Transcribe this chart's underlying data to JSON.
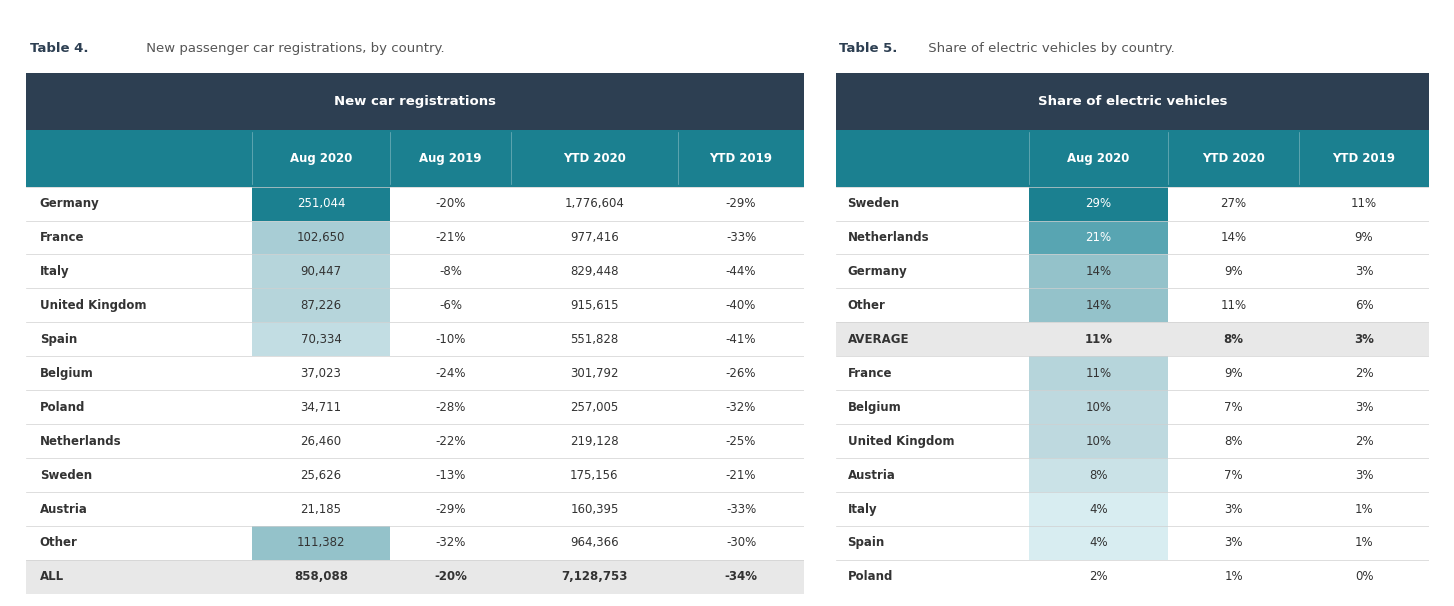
{
  "table4_title_bold": "Table 4.",
  "table4_title_rest": " New passenger car registrations, by country.",
  "table4_header_main": "New car registrations",
  "table4_cols": [
    "",
    "Aug 2020",
    "Aug 2019",
    "YTD 2020",
    "YTD 2019"
  ],
  "table4_rows": [
    [
      "Germany",
      "251,044",
      "-20%",
      "1,776,604",
      "-29%"
    ],
    [
      "France",
      "102,650",
      "-21%",
      "977,416",
      "-33%"
    ],
    [
      "Italy",
      "90,447",
      "-8%",
      "829,448",
      "-44%"
    ],
    [
      "United Kingdom",
      "87,226",
      "-6%",
      "915,615",
      "-40%"
    ],
    [
      "Spain",
      "70,334",
      "-10%",
      "551,828",
      "-41%"
    ],
    [
      "Belgium",
      "37,023",
      "-24%",
      "301,792",
      "-26%"
    ],
    [
      "Poland",
      "34,711",
      "-28%",
      "257,005",
      "-32%"
    ],
    [
      "Netherlands",
      "26,460",
      "-22%",
      "219,128",
      "-25%"
    ],
    [
      "Sweden",
      "25,626",
      "-13%",
      "175,156",
      "-21%"
    ],
    [
      "Austria",
      "21,185",
      "-29%",
      "160,395",
      "-33%"
    ],
    [
      "Other",
      "111,382",
      "-32%",
      "964,366",
      "-30%"
    ],
    [
      "ALL",
      "858,088",
      "-20%",
      "7,128,753",
      "-34%"
    ]
  ],
  "table4_aug2020_colors": [
    "#1b8090",
    "#a8cdd5",
    "#b6d5db",
    "#b6d5db",
    "#c2dde3",
    "#ffffff",
    "#ffffff",
    "#ffffff",
    "#ffffff",
    "#ffffff",
    "#94c2ca",
    "#e8e8e8"
  ],
  "table4_all_row": 11,
  "table4_avg_row": -1,
  "table5_title_bold": "Table 5.",
  "table5_title_rest": " Share of electric vehicles by country.",
  "table5_header_main": "Share of electric vehicles",
  "table5_cols": [
    "",
    "Aug 2020",
    "YTD 2020",
    "YTD 2019"
  ],
  "table5_rows": [
    [
      "Sweden",
      "29%",
      "27%",
      "11%"
    ],
    [
      "Netherlands",
      "21%",
      "14%",
      "9%"
    ],
    [
      "Germany",
      "14%",
      "9%",
      "3%"
    ],
    [
      "Other",
      "14%",
      "11%",
      "6%"
    ],
    [
      "AVERAGE",
      "11%",
      "8%",
      "3%"
    ],
    [
      "France",
      "11%",
      "9%",
      "2%"
    ],
    [
      "Belgium",
      "10%",
      "7%",
      "3%"
    ],
    [
      "United Kingdom",
      "10%",
      "8%",
      "2%"
    ],
    [
      "Austria",
      "8%",
      "7%",
      "3%"
    ],
    [
      "Italy",
      "4%",
      "3%",
      "1%"
    ],
    [
      "Spain",
      "4%",
      "3%",
      "1%"
    ],
    [
      "Poland",
      "2%",
      "1%",
      "0%"
    ]
  ],
  "table5_aug2020_colors": [
    "#1b8090",
    "#58a5b2",
    "#94c2ca",
    "#94c2ca",
    "#e8e8e8",
    "#b6d5db",
    "#bed9df",
    "#bed9df",
    "#cae2e7",
    "#d8edf1",
    "#d8edf1",
    "#f0f8fa"
  ],
  "table5_all_row": -1,
  "table5_avg_row": 4,
  "header_dark_bg": "#2d3f52",
  "header_teal_bg": "#1b8090",
  "header_text_color": "#ffffff",
  "title_bold_color": "#2d3f52",
  "title_rest_color": "#555555",
  "text_dark": "#333333",
  "text_white": "#ffffff",
  "avg_all_bg": "#e8e8e8",
  "divider_color": "#d0d0d0",
  "background_color": "#ffffff",
  "title_fontsize": 9.5,
  "header_fontsize": 9.5,
  "col_header_fontsize": 8.5,
  "data_fontsize": 8.5
}
